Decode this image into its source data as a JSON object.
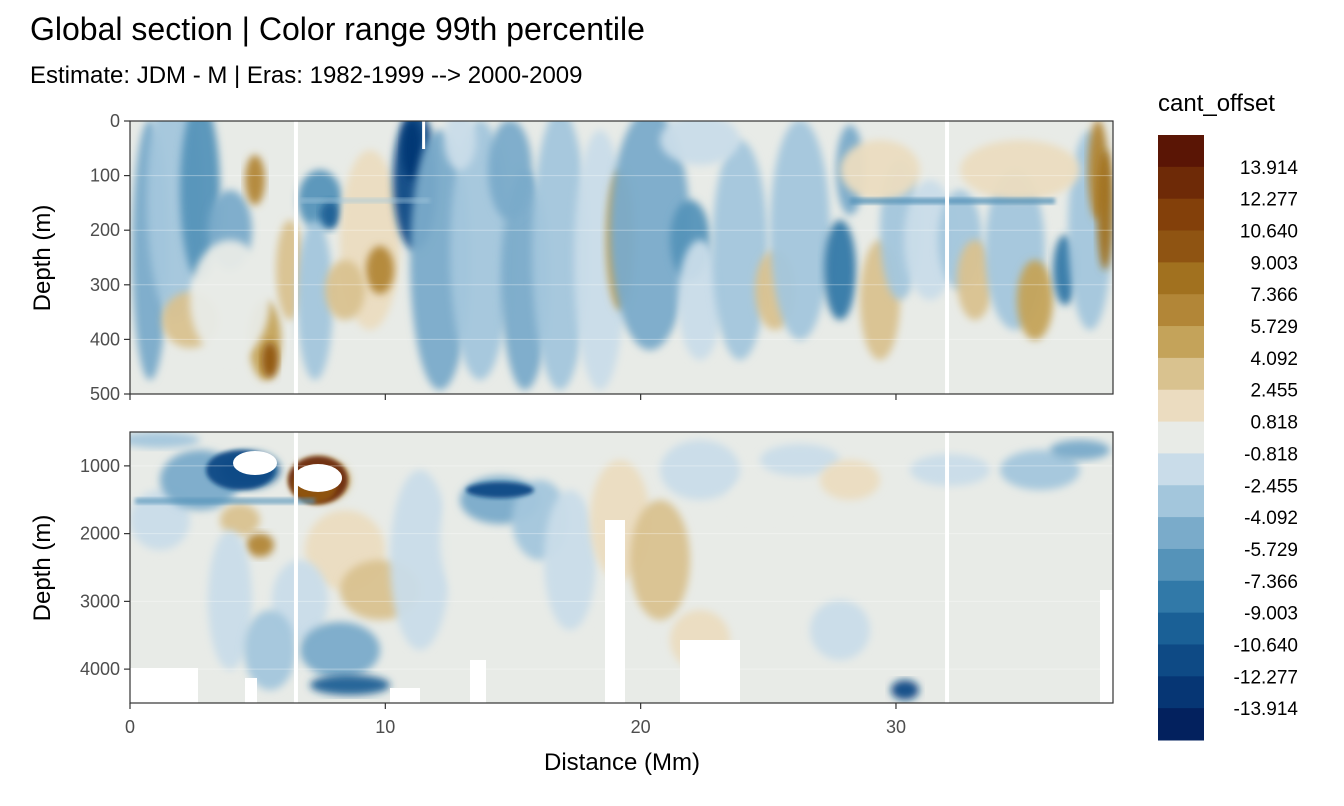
{
  "chart_data": {
    "type": "heatmap",
    "title": "Global section | Color range 99th percentile",
    "subtitle": "Estimate: JDM - M | Eras: 1982-1999 --> 2000-2009",
    "xlabel": "Distance (Mm)",
    "ylabel": "Depth (m)",
    "xlim": [
      0,
      38.5
    ],
    "x_ticks": [
      "0",
      "10",
      "20",
      "30"
    ],
    "legend": {
      "title": "cant_offset",
      "position": "right",
      "labels": [
        "13.914",
        "12.277",
        "10.640",
        "9.003",
        "7.366",
        "5.729",
        "4.092",
        "2.455",
        "0.818",
        "-0.818",
        "-2.455",
        "-4.092",
        "-5.729",
        "-7.366",
        "-9.003",
        "-10.640",
        "-12.277",
        "-13.914"
      ],
      "colors": [
        "#5a1505",
        "#6e2a07",
        "#83400a",
        "#8f5412",
        "#a1711f",
        "#b28637",
        "#c4a35a",
        "#d9c28f",
        "#ebdcc0",
        "#e8ebe7",
        "#c9dce9",
        "#a3c6dc",
        "#7aabca",
        "#5593b9",
        "#3179a8",
        "#1a6096",
        "#0e4a85",
        "#063674",
        "#03215e"
      ]
    },
    "panels": [
      {
        "name": "upper",
        "ylim": [
          0,
          500
        ],
        "y_ticks": [
          "0",
          "100",
          "200",
          "300",
          "400",
          "500"
        ],
        "grid": true
      },
      {
        "name": "lower",
        "ylim": [
          500,
          4500
        ],
        "y_ticks": [
          "1000",
          "2000",
          "3000",
          "4000"
        ],
        "grid": true
      }
    ]
  }
}
